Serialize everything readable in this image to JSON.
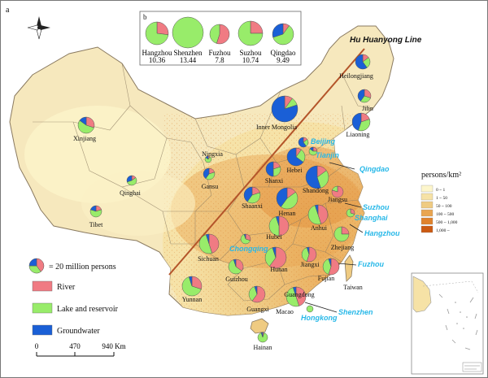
{
  "panel_label": "a",
  "inset_label": "b",
  "line_label": "Hu Huanyong Line",
  "colors": {
    "river": "#f07b83",
    "lake": "#98ec6a",
    "groundwater": "#1a5fd6",
    "city_label": "#27b8e8",
    "hu_line": "#b4552a",
    "land": "#f3d59e",
    "sea": "#ffffff"
  },
  "density_legend": {
    "title": "persons/km²",
    "classes": [
      "0 ~ 1",
      "1 ~ 50",
      "50 ~ 100",
      "100 ~ 500",
      "500 ~ 1,000",
      "1,000 ~"
    ],
    "colors": [
      "#fdf6cc",
      "#f6e2a6",
      "#efcb82",
      "#e9a550",
      "#e0822c",
      "#cc5a12"
    ]
  },
  "legend": {
    "pie_note": "= 20 million persons",
    "items": [
      {
        "label": "River",
        "color_key": "river"
      },
      {
        "label": "Lake and reservoir",
        "color_key": "lake"
      },
      {
        "label": "Groundwater",
        "color_key": "groundwater"
      }
    ]
  },
  "scale_bar": {
    "ticks": [
      "0",
      "470",
      "940 Km"
    ]
  },
  "inset_cities": [
    {
      "name": "Hangzhou",
      "value": "10.36",
      "river": 0.27,
      "lake": 0.73,
      "groundwater": 0.0
    },
    {
      "name": "Shenzhen",
      "value": "13.44",
      "river": 0.0,
      "lake": 1.0,
      "groundwater": 0.0
    },
    {
      "name": "Fuzhou",
      "value": "7.8",
      "river": 0.55,
      "lake": 0.45,
      "groundwater": 0.0
    },
    {
      "name": "Suzhou",
      "value": "10.74",
      "river": 0.25,
      "lake": 0.75,
      "groundwater": 0.0
    },
    {
      "name": "Qingdao",
      "value": "9.49",
      "river": 0.1,
      "lake": 0.6,
      "groundwater": 0.3
    }
  ],
  "provinces": [
    {
      "name": "Heilongjiang",
      "river": 0.15,
      "lake": 0.25,
      "groundwater": 0.6
    },
    {
      "name": "Jilin",
      "river": 0.3,
      "lake": 0.3,
      "groundwater": 0.4
    },
    {
      "name": "Liaoning",
      "river": 0.2,
      "lake": 0.35,
      "groundwater": 0.45
    },
    {
      "name": "Inner Mongolia",
      "river": 0.1,
      "lake": 0.1,
      "groundwater": 0.8
    },
    {
      "name": "Xinjiang",
      "river": 0.3,
      "lake": 0.55,
      "groundwater": 0.15
    },
    {
      "name": "Ningxia",
      "river": 0.1,
      "lake": 0.75,
      "groundwater": 0.15
    },
    {
      "name": "Gansu",
      "river": 0.2,
      "lake": 0.4,
      "groundwater": 0.4
    },
    {
      "name": "Qinghai",
      "river": 0.15,
      "lake": 0.55,
      "groundwater": 0.3
    },
    {
      "name": "Tibet",
      "river": 0.2,
      "lake": 0.6,
      "groundwater": 0.2
    },
    {
      "name": "Beijing",
      "river": 0.15,
      "lake": 0.25,
      "groundwater": 0.6
    },
    {
      "name": "Tianjin",
      "river": 0.25,
      "lake": 0.6,
      "groundwater": 0.15
    },
    {
      "name": "Hebei",
      "river": 0.1,
      "lake": 0.25,
      "groundwater": 0.65
    },
    {
      "name": "Shanxi",
      "river": 0.2,
      "lake": 0.3,
      "groundwater": 0.5
    },
    {
      "name": "Shandong",
      "river": 0.15,
      "lake": 0.3,
      "groundwater": 0.55
    },
    {
      "name": "Shaanxi",
      "river": 0.2,
      "lake": 0.4,
      "groundwater": 0.4
    },
    {
      "name": "Henan",
      "river": 0.15,
      "lake": 0.45,
      "groundwater": 0.4
    },
    {
      "name": "Jiangsu",
      "river": 0.8,
      "lake": 0.2,
      "groundwater": 0.0
    },
    {
      "name": "Anhui",
      "river": 0.45,
      "lake": 0.5,
      "groundwater": 0.05
    },
    {
      "name": "Shanghai",
      "river": 0.3,
      "lake": 0.7,
      "groundwater": 0.0
    },
    {
      "name": "Hubei",
      "river": 0.5,
      "lake": 0.45,
      "groundwater": 0.05
    },
    {
      "name": "Chongqing",
      "river": 0.3,
      "lake": 0.65,
      "groundwater": 0.05
    },
    {
      "name": "Sichuan",
      "river": 0.45,
      "lake": 0.5,
      "groundwater": 0.05
    },
    {
      "name": "Zhejiang",
      "river": 0.25,
      "lake": 0.75,
      "groundwater": 0.0
    },
    {
      "name": "Hunan",
      "river": 0.6,
      "lake": 0.35,
      "groundwater": 0.05
    },
    {
      "name": "Jiangxi",
      "river": 0.55,
      "lake": 0.4,
      "groundwater": 0.05
    },
    {
      "name": "Fujian",
      "river": 0.55,
      "lake": 0.4,
      "groundwater": 0.05
    },
    {
      "name": "Guizhou",
      "river": 0.35,
      "lake": 0.6,
      "groundwater": 0.05
    },
    {
      "name": "Yunnan",
      "river": 0.3,
      "lake": 0.65,
      "groundwater": 0.05
    },
    {
      "name": "Guangxi",
      "river": 0.6,
      "lake": 0.35,
      "groundwater": 0.05
    },
    {
      "name": "Guangdong",
      "river": 0.45,
      "lake": 0.5,
      "groundwater": 0.05
    },
    {
      "name": "Hainan",
      "river": 0.05,
      "lake": 0.9,
      "groundwater": 0.05
    },
    {
      "name": "Taiwan",
      "river": 0.0,
      "lake": 0.0,
      "groundwater": 0.0
    },
    {
      "name": "Macao",
      "river": 0.0,
      "lake": 0.0,
      "groundwater": 0.0
    }
  ],
  "cities": [
    "Beijing",
    "Tianjin",
    "Qingdao",
    "Suzhou",
    "Shanghai",
    "Hangzhou",
    "Fuzhou",
    "Chongqing",
    "Hongkong",
    "Shenzhen"
  ]
}
